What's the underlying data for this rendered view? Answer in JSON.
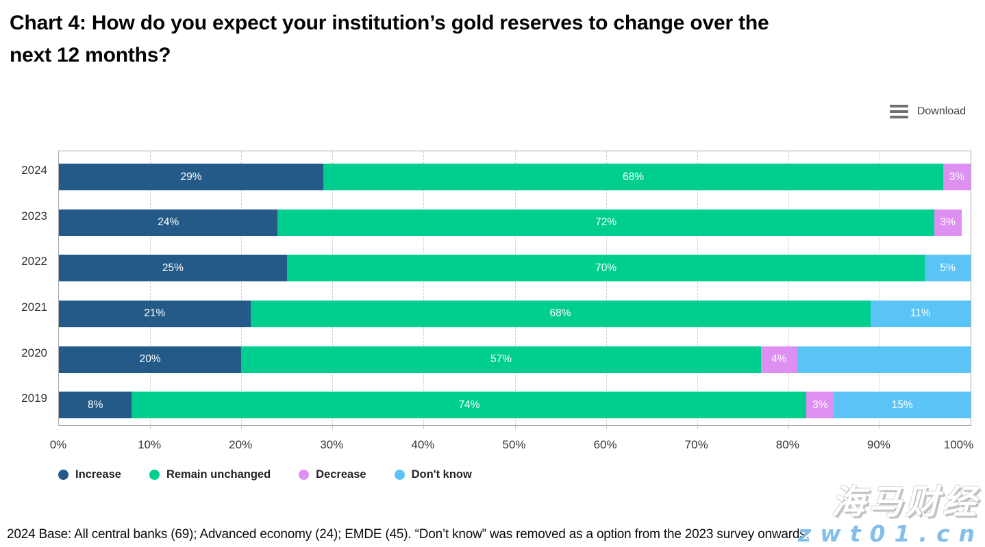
{
  "page": {
    "title_line1": "Chart 4: How do you expect your institution’s gold reserves to change over the",
    "title_line2": "next 12 months?",
    "download_label": "Download",
    "footer_note": "2024 Base: All central banks (69); Advanced economy (24); EMDE (45). “Don’t know” was removed as a option from the 2023 survey onwards.",
    "watermark": {
      "brand": "海马财经",
      "domain": "zwt01.cn"
    }
  },
  "chart_data": {
    "type": "bar",
    "orientation": "horizontal",
    "stacked": true,
    "title": "Chart 4: How do you expect your institution’s gold reserves to change over the next 12 months?",
    "categories": [
      "2024",
      "2023",
      "2022",
      "2021",
      "2020",
      "2019"
    ],
    "series": [
      {
        "name": "Increase",
        "color": "#235A87",
        "values": [
          29,
          24,
          25,
          21,
          20,
          8
        ],
        "labels": [
          "29%",
          "24%",
          "25%",
          "21%",
          "20%",
          "8%"
        ]
      },
      {
        "name": "Remain unchanged",
        "color": "#00CE8E",
        "values": [
          68,
          72,
          70,
          68,
          57,
          74
        ],
        "labels": [
          "68%",
          "72%",
          "70%",
          "68%",
          "57%",
          "74%"
        ]
      },
      {
        "name": "Decrease",
        "color": "#DD90F2",
        "values": [
          3,
          3,
          0,
          0,
          4,
          3
        ],
        "labels": [
          "3%",
          "3%",
          "",
          "",
          "4%",
          "3%"
        ]
      },
      {
        "name": "Don't know",
        "color": "#5BC4F7",
        "values": [
          0,
          0,
          5,
          11,
          19,
          15
        ],
        "labels": [
          "",
          "",
          "5%",
          "11%",
          "",
          "15%"
        ]
      }
    ],
    "x_ticks": [
      "0%",
      "10%",
      "20%",
      "30%",
      "40%",
      "50%",
      "60%",
      "70%",
      "80%",
      "90%",
      "100%"
    ],
    "xlim": [
      0,
      100
    ],
    "grid": "dashed-vertical",
    "legend_position": "bottom",
    "bar_label_color": "#ffffff"
  }
}
